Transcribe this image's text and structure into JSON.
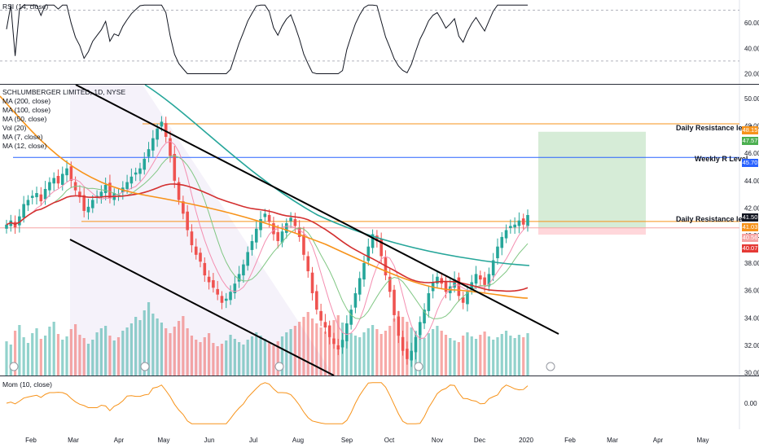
{
  "chart_data": {
    "type": "candlestick",
    "title": "SCHLUMBERGER LIMITED, 1D, NYSE",
    "indicators": {
      "rsi_label": "RSI (14, close)",
      "main_legend": [
        "MA (200, close)",
        "MA (100, close)",
        "MA (50, close)",
        "Vol (20)",
        "MA (7, close)",
        "MA (12, close)"
      ],
      "mom_label": "Mom (10, close)"
    },
    "x_ticks": [
      "Feb",
      "Mar",
      "Apr",
      "May",
      "Jun",
      "Jul",
      "Aug",
      "Sep",
      "Oct",
      "Nov",
      "Dec",
      "2020",
      "Feb",
      "Mar",
      "Apr",
      "May"
    ],
    "price_axis": {
      "ticks": [
        50.0,
        48.0,
        46.0,
        44.0,
        42.0,
        40.0,
        38.0,
        36.0,
        34.0,
        32.0,
        30.0
      ],
      "ylim": [
        29.8,
        51.0
      ]
    },
    "rsi_axis": {
      "ticks": [
        "60.00",
        "40.00",
        "20.00"
      ]
    },
    "mom_axis": {
      "ticks": [
        "0.00"
      ]
    },
    "price_tags": [
      {
        "value": "48.15",
        "color": "#f7931a"
      },
      {
        "value": "47.57",
        "color": "#4caf50"
      },
      {
        "value": "45.70",
        "color": "#2962ff"
      },
      {
        "value": "41.50",
        "color": "#131722"
      },
      {
        "value": "41.03",
        "color": "#f7931a"
      },
      {
        "value": "40.56",
        "color": "#f5a3a3"
      },
      {
        "value": "40.07",
        "color": "#e53935"
      }
    ],
    "levels": [
      {
        "name": "Daily Resistance level",
        "price": 48.15,
        "color": "#f7931a"
      },
      {
        "name": "Weekly R Level",
        "price": 45.7,
        "color": "#2962ff"
      },
      {
        "name": "Daily Resistance level",
        "price": 41.03,
        "color": "#f7931a"
      }
    ],
    "position": {
      "entry": 40.56,
      "target": 47.57,
      "stop": 40.07,
      "current": 41.5
    },
    "closes": [
      40.8,
      41.1,
      40.6,
      41.4,
      42.3,
      42.6,
      42.9,
      43.1,
      42.5,
      43.4,
      43.9,
      44.2,
      43.8,
      44.5,
      44.9,
      44.0,
      43.3,
      42.8,
      41.8,
      42.1,
      42.6,
      42.9,
      43.2,
      43.7,
      42.7,
      43.1,
      43.0,
      43.5,
      43.9,
      44.3,
      44.6,
      44.9,
      45.6,
      46.3,
      47.1,
      47.8,
      48.3,
      47.2,
      45.8,
      44.0,
      42.6,
      41.6,
      40.4,
      39.3,
      38.6,
      38.1,
      37.1,
      36.6,
      36.2,
      35.7,
      35.1,
      35.4,
      35.9,
      36.5,
      37.2,
      37.9,
      38.8,
      39.6,
      40.5,
      41.2,
      41.6,
      41.0,
      40.1,
      39.6,
      40.3,
      40.9,
      41.3,
      40.7,
      39.9,
      38.6,
      37.4,
      35.8,
      34.6,
      33.8,
      33.3,
      32.6,
      32.1,
      31.7,
      32.4,
      33.6,
      34.6,
      35.8,
      36.9,
      38.0,
      39.2,
      40.1,
      39.6,
      38.5,
      37.1,
      35.9,
      34.2,
      32.7,
      31.6,
      31.0,
      31.6,
      32.6,
      33.7,
      34.6,
      35.8,
      36.6,
      37.0,
      36.5,
      35.9,
      36.3,
      36.8,
      35.6,
      35.1,
      35.9,
      36.6,
      37.2,
      36.8,
      36.4,
      37.2,
      38.2,
      39.2,
      39.9,
      40.4,
      40.7,
      40.8,
      41.1,
      40.8,
      41.5
    ],
    "volumes": [
      42,
      38,
      55,
      62,
      47,
      40,
      52,
      58,
      45,
      49,
      60,
      66,
      51,
      44,
      48,
      57,
      63,
      50,
      46,
      39,
      44,
      53,
      58,
      61,
      49,
      43,
      47,
      55,
      59,
      64,
      72,
      68,
      80,
      90,
      76,
      70,
      65,
      58,
      52,
      60,
      67,
      73,
      58,
      49,
      44,
      41,
      47,
      52,
      40,
      36,
      39,
      43,
      50,
      45,
      41,
      38,
      44,
      48,
      53,
      49,
      45,
      40,
      37,
      42,
      48,
      53,
      57,
      61,
      66,
      72,
      78,
      70,
      64,
      59,
      54,
      60,
      68,
      74,
      65,
      56,
      52,
      49,
      47,
      53,
      58,
      62,
      57,
      51,
      55,
      61,
      70,
      79,
      72,
      66,
      59,
      55,
      50,
      46,
      52,
      57,
      61,
      55,
      50,
      46,
      43,
      41,
      49,
      53,
      48,
      45,
      50,
      54,
      48,
      44,
      47,
      51,
      55,
      49,
      46,
      50,
      47,
      52
    ]
  }
}
